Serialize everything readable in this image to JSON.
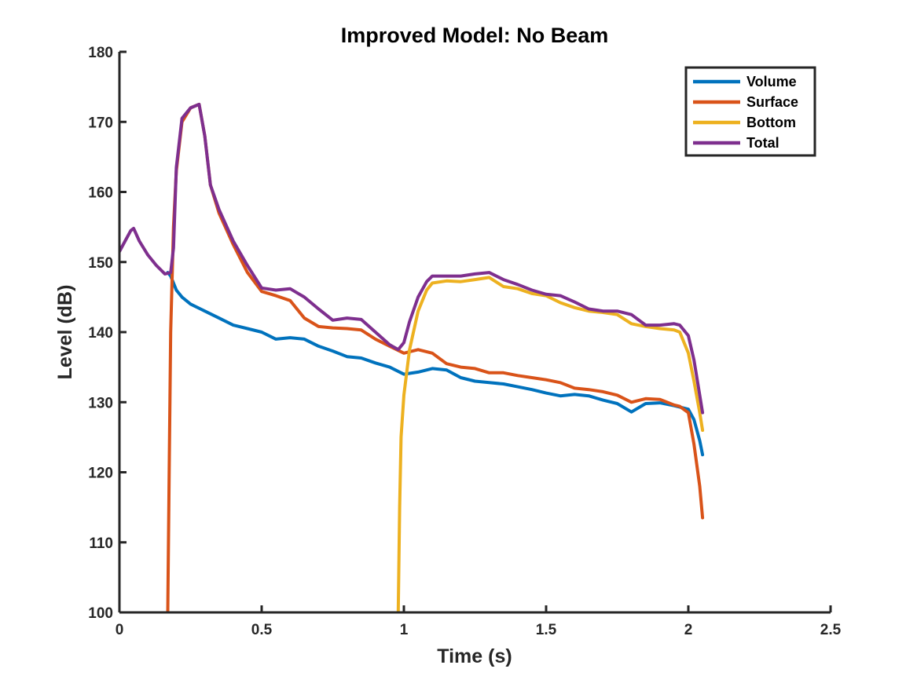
{
  "chart_data": {
    "type": "line",
    "title": "Improved Model: No Beam",
    "xlabel": "Time (s)",
    "ylabel": "Level (dB)",
    "xlim": [
      0,
      2.5
    ],
    "ylim": [
      100,
      180
    ],
    "xticks": [
      0,
      0.5,
      1,
      1.5,
      2,
      2.5
    ],
    "xtick_labels": [
      "0",
      "0.5",
      "1",
      "1.5",
      "2",
      "2.5"
    ],
    "yticks": [
      100,
      110,
      120,
      130,
      140,
      150,
      160,
      170,
      180
    ],
    "ytick_labels": [
      "100",
      "110",
      "120",
      "130",
      "140",
      "150",
      "160",
      "170",
      "180"
    ],
    "grid": false,
    "legend_position": "top-right",
    "series": [
      {
        "name": "Volume",
        "color": "#0072BD",
        "x": [
          0.17,
          0.18,
          0.19,
          0.2,
          0.22,
          0.25,
          0.3,
          0.35,
          0.4,
          0.45,
          0.5,
          0.55,
          0.6,
          0.65,
          0.7,
          0.75,
          0.8,
          0.85,
          0.9,
          0.95,
          1.0,
          1.05,
          1.1,
          1.15,
          1.2,
          1.25,
          1.3,
          1.35,
          1.4,
          1.45,
          1.5,
          1.55,
          1.6,
          1.65,
          1.7,
          1.75,
          1.8,
          1.85,
          1.9,
          1.95,
          2.0,
          2.02,
          2.04,
          2.05
        ],
        "y": [
          148.5,
          148.0,
          147.0,
          146.0,
          145.0,
          144.0,
          143.0,
          142.0,
          141.0,
          140.5,
          140.0,
          139.0,
          139.2,
          139.0,
          138.0,
          137.3,
          136.5,
          136.3,
          135.6,
          135.0,
          134.0,
          134.3,
          134.8,
          134.6,
          133.5,
          133.0,
          132.8,
          132.6,
          132.2,
          131.8,
          131.3,
          130.9,
          131.1,
          130.9,
          130.3,
          129.8,
          128.6,
          129.8,
          129.9,
          129.5,
          129.0,
          127.5,
          124.5,
          122.5
        ]
      },
      {
        "name": "Surface",
        "color": "#D95319",
        "x": [
          0.17,
          0.175,
          0.18,
          0.19,
          0.2,
          0.22,
          0.25,
          0.28,
          0.3,
          0.32,
          0.35,
          0.4,
          0.45,
          0.5,
          0.55,
          0.6,
          0.65,
          0.7,
          0.75,
          0.8,
          0.85,
          0.9,
          0.95,
          1.0,
          1.05,
          1.1,
          1.15,
          1.2,
          1.25,
          1.3,
          1.35,
          1.4,
          1.45,
          1.5,
          1.55,
          1.6,
          1.65,
          1.7,
          1.75,
          1.8,
          1.85,
          1.9,
          1.95,
          1.97,
          2.0,
          2.02,
          2.04,
          2.05
        ],
        "y": [
          100.0,
          120.0,
          140.0,
          155.0,
          163.0,
          170.0,
          172.0,
          172.5,
          168.0,
          161.0,
          157.0,
          152.5,
          148.5,
          145.8,
          145.2,
          144.5,
          142.0,
          140.8,
          140.6,
          140.5,
          140.3,
          139.0,
          138.0,
          137.0,
          137.5,
          137.0,
          135.5,
          135.0,
          134.8,
          134.2,
          134.2,
          133.8,
          133.5,
          133.2,
          132.8,
          132.0,
          131.8,
          131.5,
          131.0,
          130.0,
          130.5,
          130.4,
          129.6,
          129.4,
          128.5,
          124.0,
          118.0,
          113.5
        ]
      },
      {
        "name": "Bottom",
        "color": "#EDB120",
        "x": [
          0.98,
          0.985,
          0.99,
          1.0,
          1.02,
          1.05,
          1.08,
          1.1,
          1.15,
          1.2,
          1.25,
          1.3,
          1.35,
          1.4,
          1.45,
          1.5,
          1.55,
          1.6,
          1.65,
          1.7,
          1.75,
          1.8,
          1.85,
          1.9,
          1.95,
          1.97,
          2.0,
          2.02,
          2.04,
          2.05
        ],
        "y": [
          100.0,
          115.0,
          125.0,
          131.0,
          137.5,
          143.0,
          146.0,
          147.0,
          147.3,
          147.2,
          147.5,
          147.8,
          146.5,
          146.2,
          145.5,
          145.2,
          144.2,
          143.5,
          143.0,
          142.8,
          142.5,
          141.2,
          140.8,
          140.5,
          140.3,
          140.0,
          137.0,
          133.0,
          128.5,
          126.0
        ]
      },
      {
        "name": "Total",
        "color": "#7E2F8E",
        "x": [
          0.0,
          0.02,
          0.04,
          0.05,
          0.07,
          0.1,
          0.13,
          0.16,
          0.18,
          0.19,
          0.2,
          0.22,
          0.25,
          0.28,
          0.3,
          0.32,
          0.35,
          0.4,
          0.45,
          0.5,
          0.55,
          0.6,
          0.65,
          0.7,
          0.75,
          0.8,
          0.85,
          0.9,
          0.95,
          0.98,
          1.0,
          1.02,
          1.05,
          1.08,
          1.1,
          1.15,
          1.2,
          1.25,
          1.3,
          1.35,
          1.4,
          1.45,
          1.5,
          1.55,
          1.6,
          1.65,
          1.7,
          1.75,
          1.8,
          1.85,
          1.9,
          1.95,
          1.97,
          2.0,
          2.02,
          2.04,
          2.05
        ],
        "y": [
          151.5,
          153.0,
          154.5,
          154.8,
          153.0,
          151.0,
          149.5,
          148.3,
          148.5,
          152.0,
          163.5,
          170.5,
          172.0,
          172.5,
          168.0,
          161.0,
          157.5,
          153.0,
          149.5,
          146.3,
          146.0,
          146.2,
          145.0,
          143.3,
          141.7,
          142.0,
          141.8,
          140.0,
          138.2,
          137.5,
          138.5,
          141.5,
          145.0,
          147.2,
          148.0,
          148.0,
          148.0,
          148.3,
          148.5,
          147.5,
          146.8,
          146.0,
          145.4,
          145.2,
          144.3,
          143.3,
          143.0,
          143.0,
          142.5,
          141.0,
          141.0,
          141.2,
          141.0,
          139.5,
          136.0,
          131.0,
          128.5
        ]
      }
    ]
  }
}
